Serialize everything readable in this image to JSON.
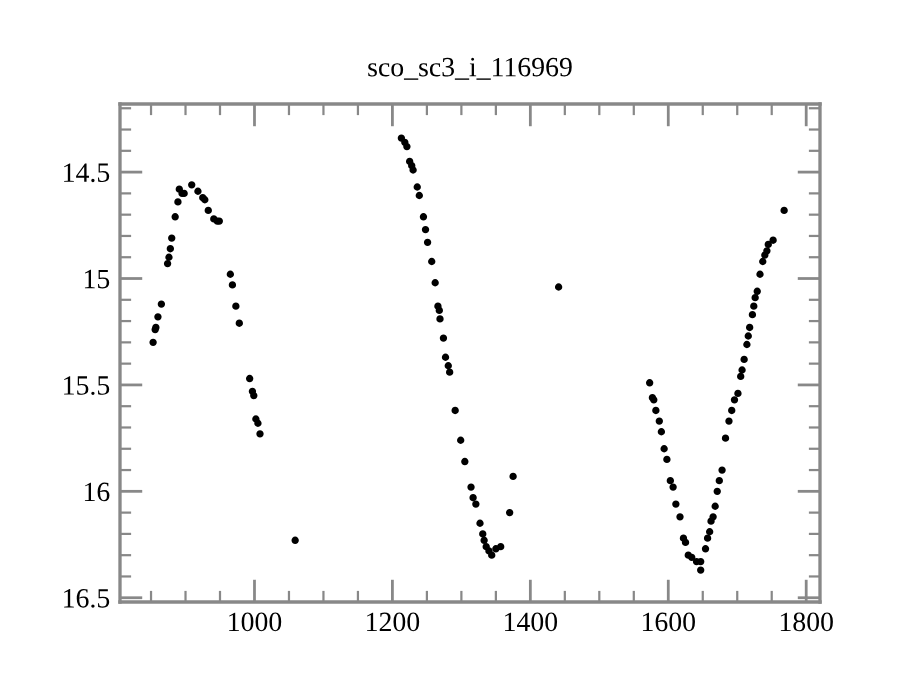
{
  "chart_data": {
    "type": "scatter",
    "title": "sco_sc3_i_116969",
    "marker": "circle",
    "grid": false,
    "xlim": [
      805,
      1820
    ],
    "ylim": [
      16.52,
      14.18
    ],
    "xticks": [
      {
        "value": 850,
        "label": null
      },
      {
        "value": 900,
        "label": null
      },
      {
        "value": 950,
        "label": null
      },
      1000,
      {
        "value": 1050,
        "label": null
      },
      {
        "value": 1100,
        "label": null
      },
      {
        "value": 1150,
        "label": null
      },
      1200,
      {
        "value": 1250,
        "label": null
      },
      {
        "value": 1300,
        "label": null
      },
      {
        "value": 1350,
        "label": null
      },
      1400,
      {
        "value": 1450,
        "label": null
      },
      {
        "value": 1500,
        "label": null
      },
      {
        "value": 1550,
        "label": null
      },
      1600,
      {
        "value": 1650,
        "label": null
      },
      {
        "value": 1700,
        "label": null
      },
      {
        "value": 1750,
        "label": null
      },
      1800
    ],
    "yticks": [
      {
        "value": 14.2,
        "label": null
      },
      {
        "value": 14.3,
        "label": null
      },
      {
        "value": 14.4,
        "label": null
      },
      14.5,
      {
        "value": 14.6,
        "label": null
      },
      {
        "value": 14.7,
        "label": null
      },
      {
        "value": 14.8,
        "label": null
      },
      {
        "value": 14.9,
        "label": null
      },
      15,
      {
        "value": 15.1,
        "label": null
      },
      {
        "value": 15.2,
        "label": null
      },
      {
        "value": 15.3,
        "label": null
      },
      {
        "value": 15.4,
        "label": null
      },
      15.5,
      {
        "value": 15.6,
        "label": null
      },
      {
        "value": 15.7,
        "label": null
      },
      {
        "value": 15.8,
        "label": null
      },
      {
        "value": 15.9,
        "label": null
      },
      16,
      {
        "value": 16.1,
        "label": null
      },
      {
        "value": 16.2,
        "label": null
      },
      {
        "value": 16.3,
        "label": null
      },
      {
        "value": 16.4,
        "label": null
      },
      16.5
    ],
    "series": [
      {
        "color": "#000000",
        "x": [
          853,
          856,
          857,
          860,
          865,
          874,
          876,
          878,
          880,
          885,
          889,
          891,
          895,
          898,
          909,
          918,
          925,
          928,
          933,
          941,
          946,
          949,
          965,
          968,
          973,
          978,
          993,
          997,
          999,
          1002,
          1005,
          1008,
          1059,
          1213,
          1218,
          1221,
          1225,
          1228,
          1230,
          1236,
          1239,
          1245,
          1248,
          1251,
          1257,
          1262,
          1266,
          1268,
          1269,
          1274,
          1277,
          1281,
          1283,
          1291,
          1299,
          1305,
          1314,
          1317,
          1321,
          1327,
          1331,
          1333,
          1336,
          1340,
          1344,
          1350,
          1357,
          1370,
          1375,
          1441,
          1573,
          1577,
          1579,
          1582,
          1587,
          1590,
          1594,
          1598,
          1603,
          1607,
          1611,
          1617,
          1622,
          1625,
          1629,
          1634,
          1641,
          1647,
          1647,
          1654,
          1657,
          1660,
          1662,
          1665,
          1668,
          1671,
          1674,
          1678,
          1683,
          1688,
          1692,
          1696,
          1701,
          1705,
          1707,
          1710,
          1714,
          1716,
          1718,
          1722,
          1724,
          1726,
          1729,
          1733,
          1737,
          1740,
          1743,
          1745,
          1752,
          1768
        ],
        "values": [
          15.3,
          15.24,
          15.23,
          15.18,
          15.12,
          14.93,
          14.9,
          14.86,
          14.81,
          14.71,
          14.64,
          14.58,
          14.6,
          14.6,
          14.56,
          14.59,
          14.62,
          14.63,
          14.68,
          14.72,
          14.73,
          14.73,
          14.98,
          15.03,
          15.13,
          15.21,
          15.47,
          15.53,
          15.55,
          15.66,
          15.68,
          15.73,
          16.23,
          14.34,
          14.36,
          14.38,
          14.45,
          14.47,
          14.49,
          14.57,
          14.61,
          14.71,
          14.77,
          14.83,
          14.92,
          15.02,
          15.13,
          15.15,
          15.19,
          15.28,
          15.37,
          15.41,
          15.44,
          15.62,
          15.76,
          15.86,
          15.98,
          16.03,
          16.06,
          16.15,
          16.2,
          16.23,
          16.26,
          16.28,
          16.3,
          16.27,
          16.26,
          16.1,
          15.93,
          15.04,
          15.49,
          15.56,
          15.57,
          15.62,
          15.67,
          15.72,
          15.8,
          15.85,
          15.95,
          15.98,
          16.06,
          16.12,
          16.22,
          16.24,
          16.3,
          16.31,
          16.33,
          16.37,
          16.33,
          16.27,
          16.22,
          16.19,
          16.14,
          16.12,
          16.07,
          16.0,
          15.95,
          15.9,
          15.75,
          15.67,
          15.62,
          15.57,
          15.54,
          15.46,
          15.43,
          15.38,
          15.31,
          15.27,
          15.23,
          15.17,
          15.13,
          15.09,
          15.06,
          14.98,
          14.92,
          14.89,
          14.87,
          14.84,
          14.82,
          14.68
        ]
      }
    ]
  }
}
